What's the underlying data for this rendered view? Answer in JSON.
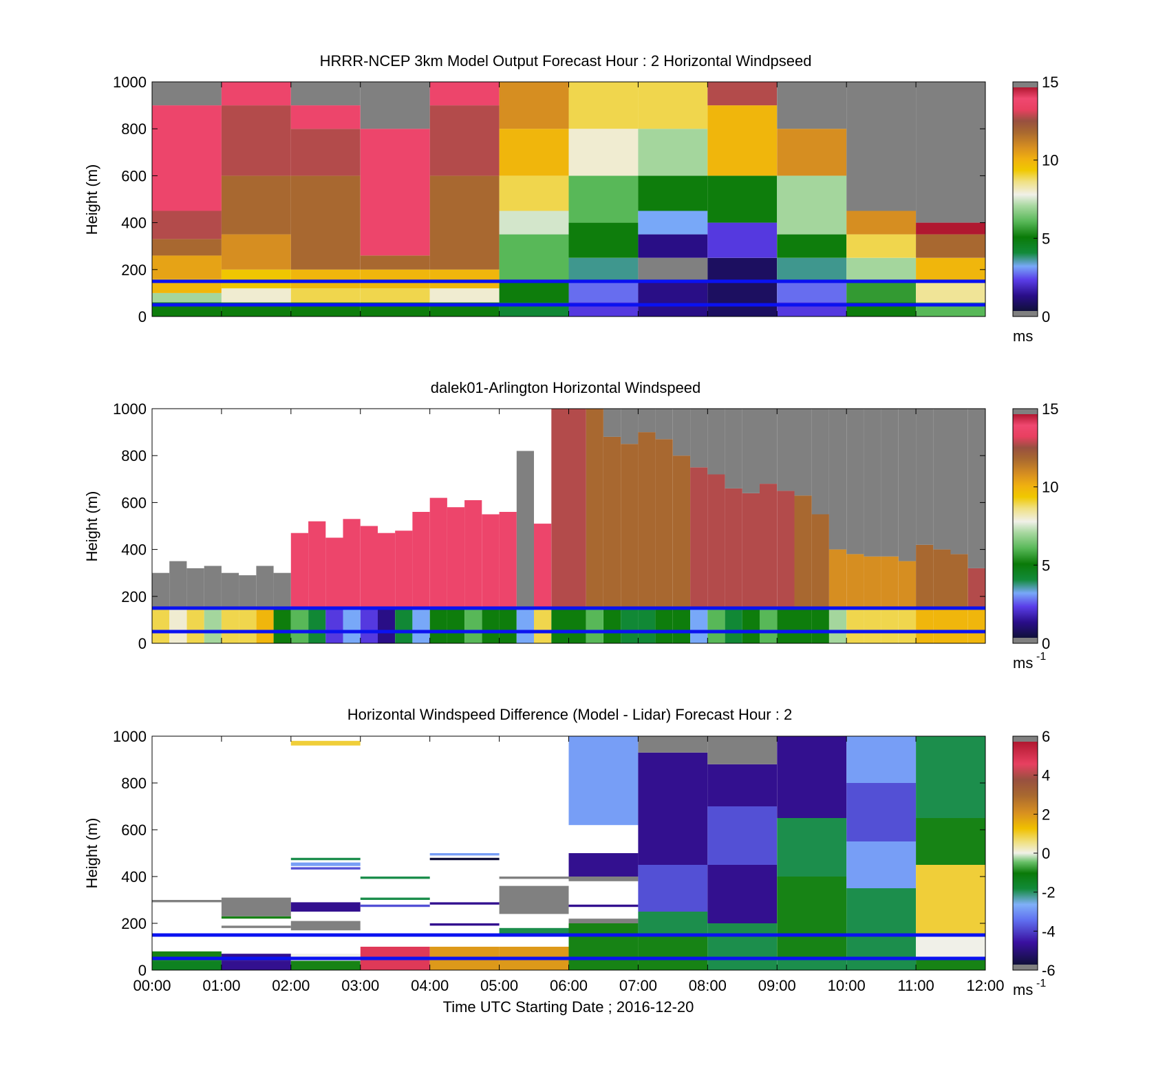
{
  "figure": {
    "xlabel": "Time UTC  Starting Date ; 2016-12-20",
    "x_ticks": [
      "00:00",
      "01:00",
      "02:00",
      "03:00",
      "04:00",
      "05:00",
      "06:00",
      "07:00",
      "08:00",
      "09:00",
      "10:00",
      "11:00",
      "12:00"
    ],
    "reference_line_color": "#0a12f0",
    "missing_color": "#808080"
  },
  "chart_data": [
    {
      "type": "heatmap",
      "title": "HRRR-NCEP 3km Model Output   Forecast Hour : 2 Horizontal Windpseed",
      "ylabel": "Height (m)",
      "ylim": [
        0,
        1000
      ],
      "y_ticks": [
        "0",
        "200",
        "400",
        "600",
        "800",
        "1000"
      ],
      "colorbar": {
        "min": 0,
        "max": 15,
        "ticks": [
          "0",
          "5",
          "10",
          "15"
        ],
        "unit": "ms",
        "unit_sup": ""
      },
      "reference_lines_m": [
        150,
        50
      ],
      "x_hours": [
        0,
        1,
        2,
        3,
        4,
        5,
        6,
        7,
        8,
        9,
        10,
        11
      ],
      "column_profiles_ms": [
        [
          [
            0,
            60,
            5
          ],
          [
            60,
            100,
            7
          ],
          [
            100,
            160,
            10
          ],
          [
            160,
            260,
            10.5
          ],
          [
            260,
            330,
            12
          ],
          [
            330,
            450,
            13
          ],
          [
            450,
            900,
            14
          ],
          [
            900,
            1000,
            null
          ]
        ],
        [
          [
            0,
            60,
            5
          ],
          [
            60,
            120,
            8
          ],
          [
            120,
            200,
            9.5
          ],
          [
            200,
            350,
            11
          ],
          [
            350,
            600,
            12
          ],
          [
            600,
            900,
            13
          ],
          [
            900,
            1000,
            14
          ]
        ],
        [
          [
            0,
            60,
            5
          ],
          [
            60,
            120,
            9
          ],
          [
            120,
            200,
            10
          ],
          [
            200,
            600,
            12
          ],
          [
            600,
            800,
            13
          ],
          [
            800,
            900,
            14
          ],
          [
            900,
            1000,
            null
          ]
        ],
        [
          [
            0,
            60,
            5
          ],
          [
            60,
            120,
            9
          ],
          [
            120,
            200,
            10
          ],
          [
            200,
            260,
            12
          ],
          [
            260,
            560,
            14
          ],
          [
            560,
            800,
            14
          ],
          [
            800,
            1000,
            null
          ]
        ],
        [
          [
            0,
            60,
            5
          ],
          [
            60,
            120,
            8
          ],
          [
            120,
            200,
            10
          ],
          [
            200,
            600,
            12
          ],
          [
            600,
            900,
            13
          ],
          [
            900,
            1000,
            14
          ]
        ],
        [
          [
            0,
            60,
            4
          ],
          [
            60,
            150,
            5
          ],
          [
            150,
            350,
            6
          ],
          [
            350,
            450,
            7.5
          ],
          [
            450,
            600,
            9
          ],
          [
            600,
            800,
            10
          ],
          [
            800,
            1000,
            11
          ]
        ],
        [
          [
            0,
            60,
            2
          ],
          [
            60,
            150,
            2.5
          ],
          [
            150,
            250,
            3.5
          ],
          [
            250,
            400,
            5
          ],
          [
            400,
            600,
            6
          ],
          [
            600,
            800,
            8
          ],
          [
            800,
            1000,
            9
          ]
        ],
        [
          [
            0,
            60,
            1
          ],
          [
            60,
            150,
            1
          ],
          [
            150,
            250,
            null
          ],
          [
            250,
            350,
            1
          ],
          [
            350,
            450,
            3
          ],
          [
            450,
            600,
            5
          ],
          [
            600,
            800,
            7
          ],
          [
            800,
            1000,
            9
          ]
        ],
        [
          [
            0,
            60,
            0.5
          ],
          [
            60,
            250,
            0.5
          ],
          [
            250,
            400,
            2
          ],
          [
            400,
            600,
            5
          ],
          [
            600,
            900,
            10
          ],
          [
            900,
            1000,
            13
          ]
        ],
        [
          [
            0,
            60,
            2
          ],
          [
            60,
            150,
            2.5
          ],
          [
            150,
            250,
            3.5
          ],
          [
            250,
            350,
            5
          ],
          [
            350,
            600,
            7
          ],
          [
            600,
            800,
            11
          ],
          [
            800,
            1000,
            null
          ]
        ],
        [
          [
            0,
            60,
            5
          ],
          [
            60,
            150,
            5.5
          ],
          [
            150,
            250,
            7
          ],
          [
            250,
            350,
            9
          ],
          [
            350,
            450,
            11
          ],
          [
            450,
            1000,
            null
          ]
        ],
        [
          [
            0,
            60,
            6
          ],
          [
            60,
            150,
            8.5
          ],
          [
            150,
            250,
            10
          ],
          [
            250,
            350,
            12
          ],
          [
            350,
            400,
            15
          ],
          [
            400,
            1000,
            null
          ]
        ]
      ]
    },
    {
      "type": "heatmap",
      "title": "dalek01-Arlington  Horizontal Windspeed",
      "ylabel": "Height (m)",
      "ylim": [
        0,
        1000
      ],
      "y_ticks": [
        "0",
        "200",
        "400",
        "600",
        "800",
        "1000"
      ],
      "colorbar": {
        "min": 0,
        "max": 15,
        "ticks": [
          "0",
          "5",
          "10",
          "15"
        ],
        "unit": "ms",
        "unit_sup": "-1"
      },
      "reference_lines_m": [
        150,
        50
      ],
      "x_step_hours": 0.25,
      "data_top_m": [
        300,
        350,
        320,
        330,
        300,
        290,
        330,
        300,
        470,
        520,
        450,
        530,
        500,
        470,
        480,
        560,
        620,
        580,
        610,
        550,
        560,
        820,
        510,
        1000,
        1000,
        1000,
        880,
        850,
        900,
        870,
        800,
        750,
        720,
        660,
        640,
        680,
        650,
        630,
        550,
        400,
        380,
        370,
        370,
        350,
        420,
        400,
        380,
        320
      ],
      "lower_speed_ms": [
        9,
        8,
        9,
        7,
        9,
        9,
        10,
        5,
        6,
        4,
        2,
        3,
        2,
        1,
        4,
        3,
        5,
        5,
        6,
        5,
        5,
        3,
        9,
        5,
        5,
        6,
        5,
        4,
        4,
        5,
        5,
        3,
        6,
        4,
        5,
        6,
        5,
        5,
        5,
        7,
        9,
        9,
        9,
        9,
        10,
        10,
        10,
        10
      ],
      "upper_speed_ms": [
        null,
        null,
        null,
        null,
        null,
        null,
        null,
        null,
        14,
        14,
        14,
        14,
        14,
        14,
        14,
        14,
        14,
        14,
        14,
        14,
        14,
        null,
        14,
        13,
        13,
        12,
        12,
        12,
        12,
        12,
        12,
        13,
        13,
        13,
        13,
        13,
        13,
        12,
        12,
        11,
        11,
        11,
        11,
        11,
        12,
        12,
        12,
        13
      ]
    },
    {
      "type": "heatmap",
      "title": "Horizontal Windspeed Difference (Model - Lidar) Forecast Hour : 2",
      "ylabel": "Height (m)",
      "ylim": [
        0,
        1000
      ],
      "y_ticks": [
        "0",
        "200",
        "400",
        "600",
        "800",
        "1000"
      ],
      "colorbar": {
        "min": -6,
        "max": 6,
        "ticks": [
          "-6",
          "-4",
          "-2",
          "0",
          "2",
          "4",
          "6"
        ],
        "unit": "ms",
        "unit_sup": "-1"
      },
      "reference_lines_m": [
        150,
        50
      ],
      "x_hours": [
        0,
        1,
        2,
        3,
        4,
        5,
        6,
        7,
        8,
        9,
        10,
        11
      ],
      "column_profiles_ms": [
        [
          [
            0,
            40,
            -1.5
          ],
          [
            40,
            80,
            -1
          ],
          [
            290,
            300,
            null
          ]
        ],
        [
          [
            0,
            40,
            -5
          ],
          [
            40,
            70,
            -5
          ],
          [
            180,
            190,
            null
          ],
          [
            220,
            230,
            -1
          ],
          [
            230,
            310,
            null
          ]
        ],
        [
          [
            0,
            40,
            -1
          ],
          [
            40,
            70,
            0
          ],
          [
            170,
            210,
            null
          ],
          [
            250,
            290,
            -5
          ],
          [
            430,
            440,
            -4
          ],
          [
            445,
            460,
            -3
          ],
          [
            470,
            480,
            -2
          ],
          [
            960,
            980,
            1
          ]
        ],
        [
          [
            0,
            100,
            5
          ],
          [
            270,
            280,
            -4
          ],
          [
            300,
            310,
            -2
          ],
          [
            390,
            400,
            -2
          ]
        ],
        [
          [
            0,
            100,
            2
          ],
          [
            190,
            200,
            -5
          ],
          [
            280,
            290,
            -5
          ],
          [
            470,
            480,
            -6
          ],
          [
            490,
            500,
            -3
          ]
        ],
        [
          [
            0,
            100,
            2
          ],
          [
            150,
            180,
            -2
          ],
          [
            240,
            360,
            null
          ],
          [
            390,
            400,
            null
          ]
        ],
        [
          [
            0,
            150,
            -1
          ],
          [
            150,
            200,
            -1
          ],
          [
            200,
            220,
            null
          ],
          [
            270,
            280,
            -5
          ],
          [
            380,
            400,
            null
          ],
          [
            400,
            500,
            -5
          ],
          [
            620,
            1000,
            -3
          ]
        ],
        [
          [
            0,
            150,
            -1
          ],
          [
            150,
            250,
            -2
          ],
          [
            250,
            450,
            -4
          ],
          [
            450,
            700,
            -5
          ],
          [
            700,
            930,
            -5
          ],
          [
            930,
            1000,
            null
          ]
        ],
        [
          [
            0,
            50,
            -2
          ],
          [
            50,
            200,
            -2
          ],
          [
            200,
            450,
            -5
          ],
          [
            450,
            700,
            -4
          ],
          [
            700,
            880,
            -5
          ],
          [
            880,
            1000,
            null
          ]
        ],
        [
          [
            0,
            50,
            -2
          ],
          [
            50,
            200,
            -1
          ],
          [
            200,
            400,
            -1
          ],
          [
            400,
            650,
            -2
          ],
          [
            650,
            800,
            -5
          ],
          [
            800,
            1000,
            -5
          ]
        ],
        [
          [
            0,
            50,
            -2
          ],
          [
            50,
            200,
            -2
          ],
          [
            200,
            350,
            -2
          ],
          [
            350,
            550,
            -3
          ],
          [
            550,
            800,
            -4
          ],
          [
            800,
            1000,
            -3
          ]
        ],
        [
          [
            0,
            50,
            -1
          ],
          [
            50,
            150,
            0
          ],
          [
            150,
            450,
            1
          ],
          [
            450,
            650,
            -1
          ],
          [
            650,
            1000,
            -2
          ]
        ]
      ]
    }
  ]
}
